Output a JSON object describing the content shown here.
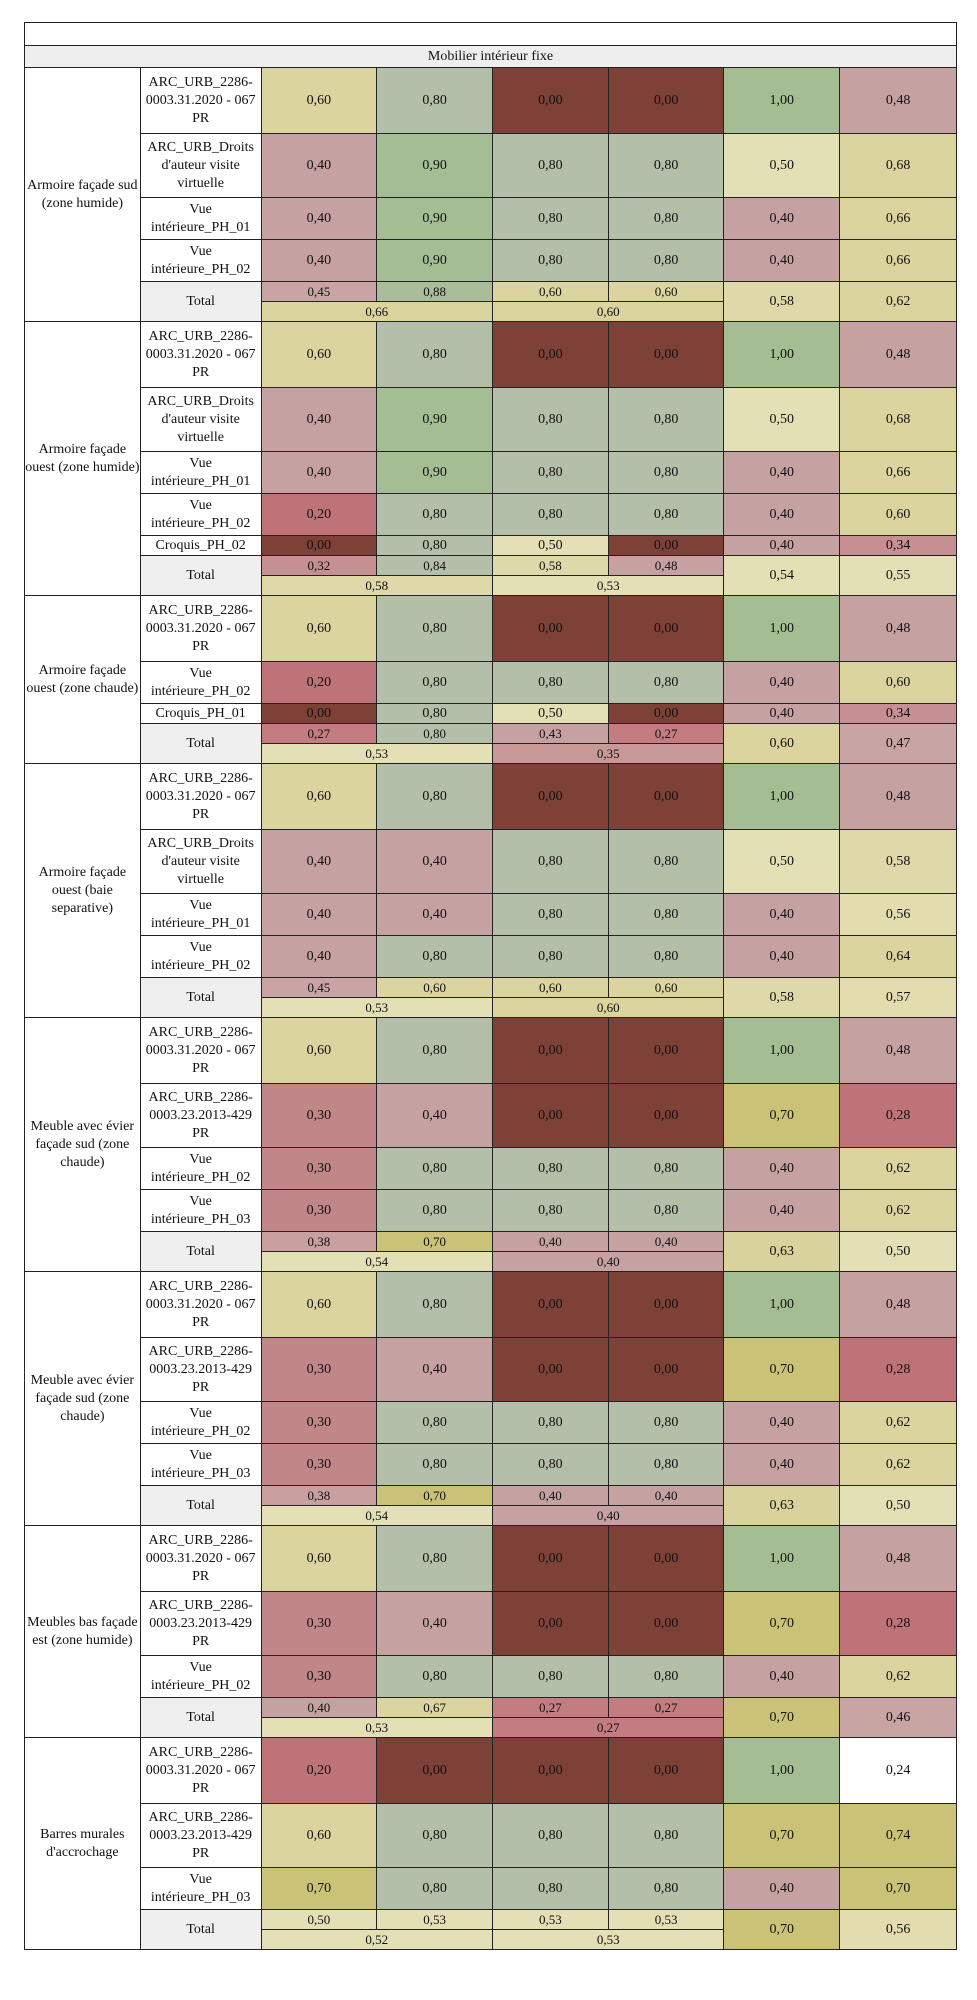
{
  "section_title": "Mobilier intérieur fixe",
  "palette": {
    "0.00": "#7e4138",
    "0.20": "#bd7377",
    "0.27": "#c37c80",
    "0.28": "#bd7377",
    "0.30": "#c08688",
    "0.32": "#c68f91",
    "0.34": "#c68f91",
    "0.35": "#c9999a",
    "0.38": "#c99fa0",
    "0.40": "#c6a1a2",
    "0.43": "#c6a1a2",
    "0.45": "#c9a4a5",
    "0.46": "#c9a4a5",
    "0.47": "#c9a4a5",
    "0.48": "#c6a1a2",
    "0.50": "#e4e0b6",
    "0.52": "#e4e0b6",
    "0.53": "#e4e0b6",
    "0.54": "#e4e0b6",
    "0.55": "#e4e0b6",
    "0.56": "#e2dcae",
    "0.57": "#e2dcae",
    "0.58": "#dfd8a8",
    "0.60": "#dcd49f",
    "0.62": "#dcd49f",
    "0.63": "#dad29c",
    "0.64": "#dcd49f",
    "0.66": "#dcd49f",
    "0.67": "#dcd49f",
    "0.68": "#dcd49f",
    "0.70": "#cac377",
    "0.74": "#cac377",
    "0.80": "#b4bfa9",
    "0.84": "#b4bfa9",
    "0.88": "#a9bd98",
    "0.90": "#a4bd92",
    "1.00": "#a4bd92"
  },
  "overrides": {
    "0.40|5": "#c6a1a2",
    "0.60|4": "#dcd49f"
  },
  "groups": [
    {
      "label": "Armoire façade sud (zone humide)",
      "rows": [
        {
          "label": "ARC_URB_2286-0003.31.2020 - 067 PR",
          "values": [
            "0,60",
            "0,80",
            "0,00",
            "0,00",
            "1,00",
            "0,48"
          ]
        },
        {
          "label": "ARC_URB_Droits d'auteur visite virtuelle",
          "values": [
            "0,40",
            "0,90",
            "0,80",
            "0,80",
            "0,50",
            "0,68"
          ]
        },
        {
          "label": "Vue intérieure_PH_01",
          "values": [
            "0,40",
            "0,90",
            "0,80",
            "0,80",
            "0,40",
            "0,66"
          ]
        },
        {
          "label": "Vue intérieure_PH_02",
          "values": [
            "0,40",
            "0,90",
            "0,80",
            "0,80",
            "0,40",
            "0,66"
          ]
        }
      ],
      "total": {
        "label": "Total",
        "sub": [
          "0,45",
          "0,88",
          "0,60",
          "0,60"
        ],
        "agg": [
          "0,66",
          "0,60"
        ],
        "right": [
          "0,58",
          "0,62"
        ]
      }
    },
    {
      "label": "Armoire façade ouest (zone humide)",
      "rows": [
        {
          "label": "ARC_URB_2286-0003.31.2020 - 067 PR",
          "values": [
            "0,60",
            "0,80",
            "0,00",
            "0,00",
            "1,00",
            "0,48"
          ]
        },
        {
          "label": "ARC_URB_Droits d'auteur visite virtuelle",
          "values": [
            "0,40",
            "0,90",
            "0,80",
            "0,80",
            "0,50",
            "0,68"
          ]
        },
        {
          "label": "Vue intérieure_PH_01",
          "values": [
            "0,40",
            "0,90",
            "0,80",
            "0,80",
            "0,40",
            "0,66"
          ]
        },
        {
          "label": "Vue intérieure_PH_02",
          "values": [
            "0,20",
            "0,80",
            "0,80",
            "0,80",
            "0,40",
            "0,60"
          ]
        },
        {
          "label": "Croquis_PH_02",
          "values": [
            "0,00",
            "0,80",
            "0,50",
            "0,00",
            "0,40",
            "0,34"
          ]
        }
      ],
      "total": {
        "label": "Total",
        "sub": [
          "0,32",
          "0,84",
          "0,58",
          "0,48"
        ],
        "agg": [
          "0,58",
          "0,53"
        ],
        "right": [
          "0,54",
          "0,55"
        ]
      }
    },
    {
      "label": "Armoire façade ouest (zone chaude)",
      "rows": [
        {
          "label": "ARC_URB_2286-0003.31.2020 - 067 PR",
          "values": [
            "0,60",
            "0,80",
            "0,00",
            "0,00",
            "1,00",
            "0,48"
          ]
        },
        {
          "label": "Vue intérieure_PH_02",
          "values": [
            "0,20",
            "0,80",
            "0,80",
            "0,80",
            "0,40",
            "0,60"
          ]
        },
        {
          "label": "Croquis_PH_01",
          "values": [
            "0,00",
            "0,80",
            "0,50",
            "0,00",
            "0,40",
            "0,34"
          ]
        }
      ],
      "total": {
        "label": "Total",
        "sub": [
          "0,27",
          "0,80",
          "0,43",
          "0,27"
        ],
        "agg": [
          "0,53",
          "0,35"
        ],
        "right": [
          "0,60",
          "0,47"
        ]
      }
    },
    {
      "label": "Armoire façade ouest (baie separative)",
      "rows": [
        {
          "label": "ARC_URB_2286-0003.31.2020 - 067 PR",
          "values": [
            "0,60",
            "0,80",
            "0,00",
            "0,00",
            "1,00",
            "0,48"
          ]
        },
        {
          "label": "ARC_URB_Droits d'auteur visite virtuelle",
          "values": [
            "0,40",
            "0,40",
            "0,80",
            "0,80",
            "0,50",
            "0,58"
          ]
        },
        {
          "label": "Vue intérieure_PH_01",
          "values": [
            "0,40",
            "0,40",
            "0,80",
            "0,80",
            "0,40",
            "0,56"
          ]
        },
        {
          "label": "Vue intérieure_PH_02",
          "values": [
            "0,40",
            "0,80",
            "0,80",
            "0,80",
            "0,40",
            "0,64"
          ]
        }
      ],
      "total": {
        "label": "Total",
        "sub": [
          "0,45",
          "0,60",
          "0,60",
          "0,60"
        ],
        "agg": [
          "0,53",
          "0,60"
        ],
        "right": [
          "0,58",
          "0,57"
        ]
      }
    },
    {
      "label": "Meuble avec évier façade sud (zone chaude)",
      "rows": [
        {
          "label": "ARC_URB_2286-0003.31.2020 - 067 PR",
          "values": [
            "0,60",
            "0,80",
            "0,00",
            "0,00",
            "1,00",
            "0,48"
          ]
        },
        {
          "label": "ARC_URB_2286-0003.23.2013-429 PR",
          "values": [
            "0,30",
            "0,40",
            "0,00",
            "0,00",
            "0,70",
            "0,28"
          ]
        },
        {
          "label": "Vue intérieure_PH_02",
          "values": [
            "0,30",
            "0,80",
            "0,80",
            "0,80",
            "0,40",
            "0,62"
          ]
        },
        {
          "label": "Vue intérieure_PH_03",
          "values": [
            "0,30",
            "0,80",
            "0,80",
            "0,80",
            "0,40",
            "0,62"
          ]
        }
      ],
      "total": {
        "label": "Total",
        "sub": [
          "0,38",
          "0,70",
          "0,40",
          "0,40"
        ],
        "agg": [
          "0,54",
          "0,40"
        ],
        "right": [
          "0,63",
          "0,50"
        ]
      }
    },
    {
      "label": "Meuble avec évier façade sud (zone chaude)",
      "rows": [
        {
          "label": "ARC_URB_2286-0003.31.2020 - 067 PR",
          "values": [
            "0,60",
            "0,80",
            "0,00",
            "0,00",
            "1,00",
            "0,48"
          ]
        },
        {
          "label": "ARC_URB_2286-0003.23.2013-429 PR",
          "values": [
            "0,30",
            "0,40",
            "0,00",
            "0,00",
            "0,70",
            "0,28"
          ]
        },
        {
          "label": "Vue intérieure_PH_02",
          "values": [
            "0,30",
            "0,80",
            "0,80",
            "0,80",
            "0,40",
            "0,62"
          ]
        },
        {
          "label": "Vue intérieure_PH_03",
          "values": [
            "0,30",
            "0,80",
            "0,80",
            "0,80",
            "0,40",
            "0,62"
          ]
        }
      ],
      "total": {
        "label": "Total",
        "sub": [
          "0,38",
          "0,70",
          "0,40",
          "0,40"
        ],
        "agg": [
          "0,54",
          "0,40"
        ],
        "right": [
          "0,63",
          "0,50"
        ]
      }
    },
    {
      "label": "Meubles bas façade est (zone humide)",
      "rows": [
        {
          "label": "ARC_URB_2286-0003.31.2020 - 067 PR",
          "values": [
            "0,60",
            "0,80",
            "0,00",
            "0,00",
            "1,00",
            "0,48"
          ]
        },
        {
          "label": "ARC_URB_2286-0003.23.2013-429 PR",
          "values": [
            "0,30",
            "0,40",
            "0,00",
            "0,00",
            "0,70",
            "0,28"
          ]
        },
        {
          "label": "Vue intérieure_PH_02",
          "values": [
            "0,30",
            "0,80",
            "0,80",
            "0,80",
            "0,40",
            "0,62"
          ]
        }
      ],
      "total": {
        "label": "Total",
        "sub": [
          "0,40",
          "0,67",
          "0,27",
          "0,27"
        ],
        "agg": [
          "0,53",
          "0,27"
        ],
        "right": [
          "0,70",
          "0,46"
        ]
      }
    },
    {
      "label": "Barres murales d'accrochage",
      "rows": [
        {
          "label": "ARC_URB_2286-0003.31.2020 - 067 PR",
          "values": [
            "0,20",
            "0,00",
            "0,00",
            "0,00",
            "1,00",
            "0,24"
          ]
        },
        {
          "label": "ARC_URB_2286-0003.23.2013-429 PR",
          "values": [
            "0,60",
            "0,80",
            "0,80",
            "0,80",
            "0,70",
            "0,74"
          ]
        },
        {
          "label": "Vue intérieure_PH_03",
          "values": [
            "0,70",
            "0,80",
            "0,80",
            "0,80",
            "0,40",
            "0,70"
          ]
        }
      ],
      "total": {
        "label": "Total",
        "sub": [
          "0,50",
          "0,53",
          "0,53",
          "0,53"
        ],
        "agg": [
          "0,52",
          "0,53"
        ],
        "right": [
          "0,70",
          "0,56"
        ]
      }
    }
  ]
}
